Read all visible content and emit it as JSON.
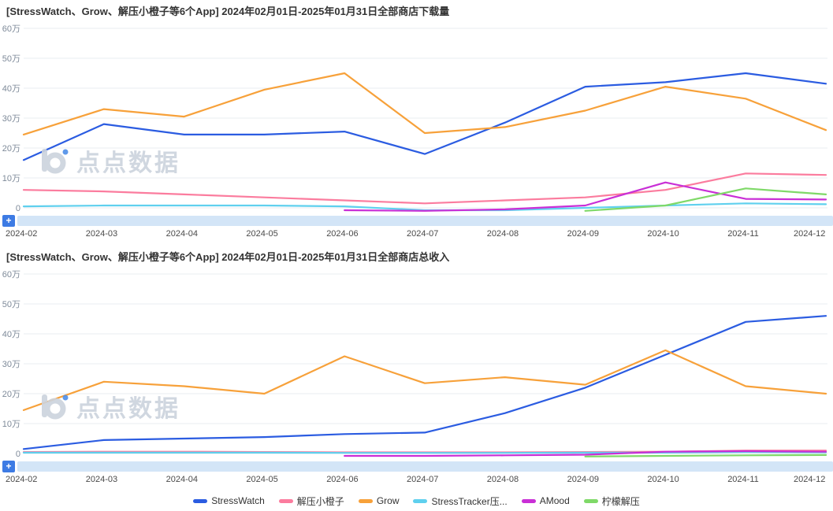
{
  "watermark": {
    "text": "点点数据"
  },
  "controls": {
    "zoom_add_label": "+"
  },
  "legend": [
    {
      "label": "StressWatch",
      "color": "#2b5ce1"
    },
    {
      "label": "解压小橙子",
      "color": "#fb7c9e"
    },
    {
      "label": "Grow",
      "color": "#f7a13a"
    },
    {
      "label": "StressTracker压...",
      "color": "#5fd0ee"
    },
    {
      "label": "AMood",
      "color": "#c92fd6"
    },
    {
      "label": "柠檬解压",
      "color": "#7fd968"
    }
  ],
  "chart_data": [
    {
      "type": "line",
      "title": "[StressWatch、Grow、解压小橙子等6个App] 2024年02月01日-2025年01月31日全部商店下载量",
      "ylabel_unit": "万",
      "ylim": [
        0,
        60
      ],
      "grid": true,
      "legend_position": "bottom",
      "y_ticks": [
        "60万",
        "50万",
        "40万",
        "30万",
        "20万",
        "10万",
        "0"
      ],
      "categories": [
        "2024-02",
        "2024-03",
        "2024-04",
        "2024-05",
        "2024-06",
        "2024-07",
        "2024-08",
        "2024-09",
        "2024-10",
        "2024-11",
        "2024-12"
      ],
      "series": [
        {
          "name": "StressWatch",
          "color": "#2b5ce1",
          "values": [
            16,
            28,
            24.5,
            24.5,
            25.5,
            18,
            28.5,
            40.5,
            42,
            45,
            41.5
          ]
        },
        {
          "name": "解压小橙子",
          "color": "#fb7c9e",
          "values": [
            6,
            5.5,
            4.5,
            3.5,
            2.5,
            1.5,
            2.5,
            3.5,
            6,
            11.5,
            11
          ]
        },
        {
          "name": "Grow",
          "color": "#f7a13a",
          "values": [
            24.5,
            33,
            30.5,
            39.5,
            45,
            25,
            27,
            32.5,
            40.5,
            36.5,
            26
          ]
        },
        {
          "name": "StressTracker压...",
          "color": "#5fd0ee",
          "values": [
            0.5,
            0.8,
            0.8,
            0.8,
            0.5,
            -0.8,
            -0.8,
            0,
            0.8,
            1.5,
            1.2
          ]
        },
        {
          "name": "AMood",
          "color": "#c92fd6",
          "values": [
            null,
            null,
            null,
            null,
            -0.8,
            -1,
            -0.5,
            0.8,
            8.5,
            3,
            2.8
          ]
        },
        {
          "name": "柠檬解压",
          "color": "#7fd968",
          "values": [
            null,
            null,
            null,
            null,
            null,
            null,
            null,
            -1,
            0.8,
            6.5,
            4.5
          ]
        }
      ]
    },
    {
      "type": "line",
      "title": "[StressWatch、Grow、解压小橙子等6个App] 2024年02月01日-2025年01月31日全部商店总收入",
      "ylabel_unit": "万",
      "ylim": [
        0,
        60
      ],
      "grid": true,
      "legend_position": "bottom",
      "y_ticks": [
        "60万",
        "50万",
        "40万",
        "30万",
        "20万",
        "10万",
        "0"
      ],
      "categories": [
        "2024-02",
        "2024-03",
        "2024-04",
        "2024-05",
        "2024-06",
        "2024-07",
        "2024-08",
        "2024-09",
        "2024-10",
        "2024-11",
        "2024-12"
      ],
      "series": [
        {
          "name": "StressWatch",
          "color": "#2b5ce1",
          "values": [
            1.5,
            4.5,
            5,
            5.5,
            6.5,
            7,
            13.5,
            22,
            33,
            44,
            46
          ]
        },
        {
          "name": "解压小橙子",
          "color": "#fb7c9e",
          "values": [
            0.5,
            0.6,
            0.6,
            0.5,
            0.4,
            0.4,
            0.4,
            0.5,
            0.6,
            1,
            1
          ]
        },
        {
          "name": "Grow",
          "color": "#f7a13a",
          "values": [
            14.5,
            24,
            22.5,
            20,
            32.5,
            23.5,
            25.5,
            23,
            34.5,
            22.5,
            20
          ]
        },
        {
          "name": "StressTracker压...",
          "color": "#5fd0ee",
          "values": [
            0.3,
            0.3,
            0.3,
            0.3,
            0.2,
            0.2,
            0.2,
            0.3,
            0.3,
            0.5,
            0.4
          ]
        },
        {
          "name": "AMood",
          "color": "#c92fd6",
          "values": [
            null,
            null,
            null,
            null,
            -0.8,
            -0.8,
            -0.6,
            -0.4,
            0.6,
            0.8,
            0.6
          ]
        },
        {
          "name": "柠檬解压",
          "color": "#7fd968",
          "values": [
            null,
            null,
            null,
            null,
            null,
            null,
            null,
            -1,
            -0.8,
            -0.6,
            -0.5
          ]
        }
      ]
    }
  ]
}
